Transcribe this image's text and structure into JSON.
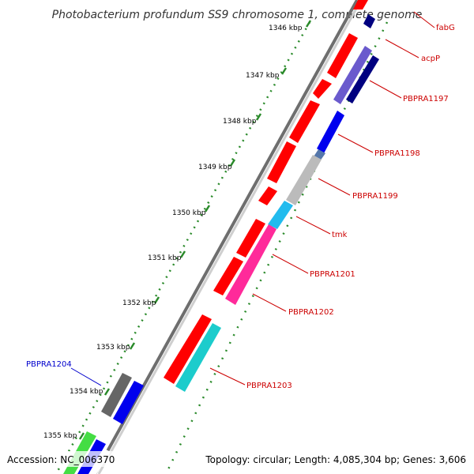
{
  "title": "Photobacterium profundum SS9 chromosome 1, complete genome",
  "footer": {
    "accession": "Accession: NC_006370",
    "summary": "Topology: circular; Length: 4,085,304 bp; Genes: 3,606"
  },
  "ticks": [
    "1346 kbp",
    "1347 kbp",
    "1348 kbp",
    "1349 kbp",
    "1350 kbp",
    "1351 kbp",
    "1352 kbp",
    "1353 kbp",
    "1354 kbp",
    "1355 kbp"
  ],
  "gene_labels": [
    {
      "id": "fabG",
      "text": "fabG",
      "color": "#cc0000"
    },
    {
      "id": "acpP",
      "text": "acpP",
      "color": "#cc0000"
    },
    {
      "id": "PBPRA1197",
      "text": "PBPRA1197",
      "color": "#cc0000"
    },
    {
      "id": "PBPRA1198",
      "text": "PBPRA1198",
      "color": "#cc0000"
    },
    {
      "id": "PBPRA1199",
      "text": "PBPRA1199",
      "color": "#cc0000"
    },
    {
      "id": "tmk",
      "text": "tmk",
      "color": "#cc0000"
    },
    {
      "id": "PBPRA1201",
      "text": "PBPRA1201",
      "color": "#cc0000"
    },
    {
      "id": "PBPRA1202",
      "text": "PBPRA1202",
      "color": "#cc0000"
    },
    {
      "id": "PBPRA1203",
      "text": "PBPRA1203",
      "color": "#cc0000"
    },
    {
      "id": "PBPRA1204",
      "text": "PBPRA1204",
      "color": "#0000cc"
    }
  ],
  "colors": {
    "forward_cds": "#ff0000",
    "backbone": "#888888",
    "tick_marks": "#2a8a2a",
    "blue_gene": "#0000ee",
    "navy_gene": "#000080",
    "slate_gene": "#6a5acd",
    "grey_gene": "#bbbbbb",
    "cyan_gene": "#22bbee",
    "pink_gene": "#ff2a9a",
    "teal_gene": "#1ccccc",
    "dark_grey_gene": "#666666",
    "green_gene": "#44dd44"
  }
}
